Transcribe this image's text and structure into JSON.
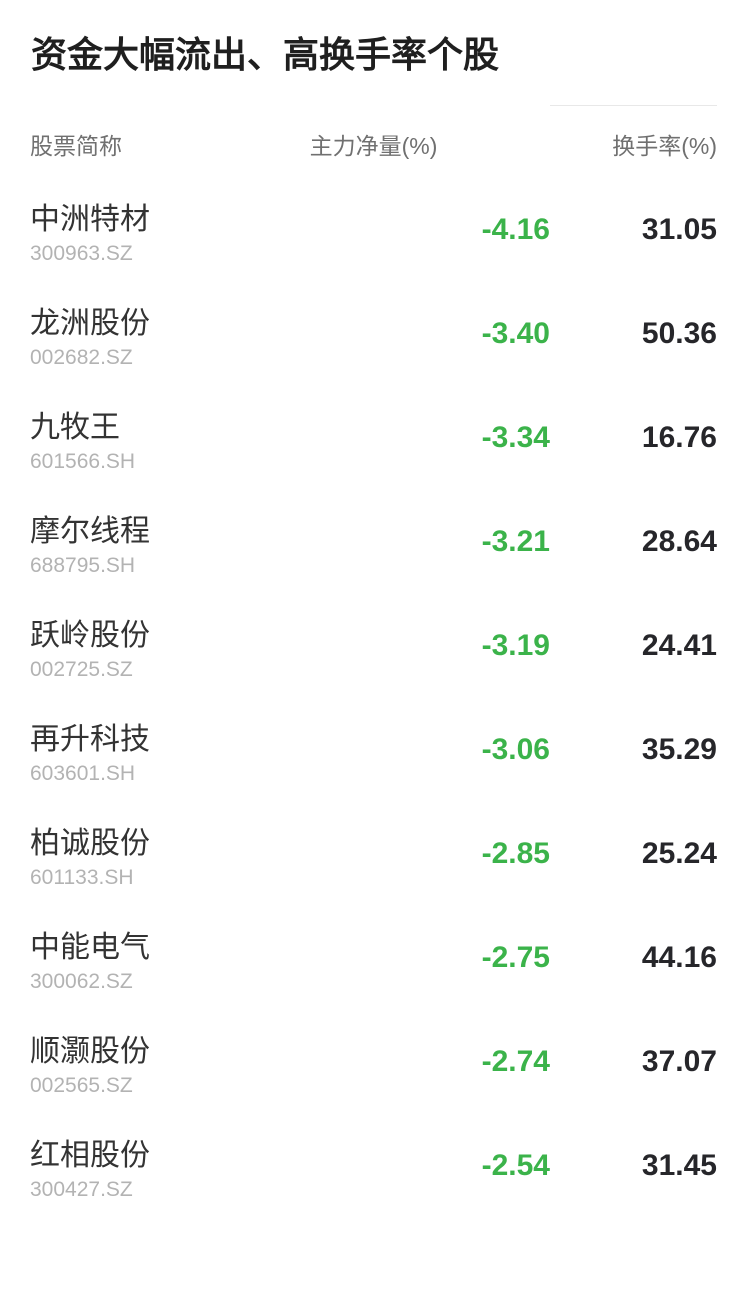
{
  "title": "资金大幅流出、高换手率个股",
  "colors": {
    "title": "#1f1f1f",
    "header_text": "#707070",
    "stock_name": "#333333",
    "stock_code": "#b3b3b3",
    "negative_value": "#3bb34a",
    "turnover_value": "#26262a",
    "divider": "#e8e8e8",
    "background": "#ffffff"
  },
  "table": {
    "headers": {
      "name": "股票简称",
      "main_net": "主力净量(%)",
      "turnover": "换手率(%)"
    },
    "rows": [
      {
        "name": "中洲特材",
        "code": "300963.SZ",
        "main_net": "-4.16",
        "turnover": "31.05"
      },
      {
        "name": "龙洲股份",
        "code": "002682.SZ",
        "main_net": "-3.40",
        "turnover": "50.36"
      },
      {
        "name": "九牧王",
        "code": "601566.SH",
        "main_net": "-3.34",
        "turnover": "16.76"
      },
      {
        "name": "摩尔线程",
        "code": "688795.SH",
        "main_net": "-3.21",
        "turnover": "28.64"
      },
      {
        "name": "跃岭股份",
        "code": "002725.SZ",
        "main_net": "-3.19",
        "turnover": "24.41"
      },
      {
        "name": "再升科技",
        "code": "603601.SH",
        "main_net": "-3.06",
        "turnover": "35.29"
      },
      {
        "name": "柏诚股份",
        "code": "601133.SH",
        "main_net": "-2.85",
        "turnover": "25.24"
      },
      {
        "name": "中能电气",
        "code": "300062.SZ",
        "main_net": "-2.75",
        "turnover": "44.16"
      },
      {
        "name": "顺灏股份",
        "code": "002565.SZ",
        "main_net": "-2.74",
        "turnover": "37.07"
      },
      {
        "name": "红相股份",
        "code": "300427.SZ",
        "main_net": "-2.54",
        "turnover": "31.45"
      }
    ]
  }
}
